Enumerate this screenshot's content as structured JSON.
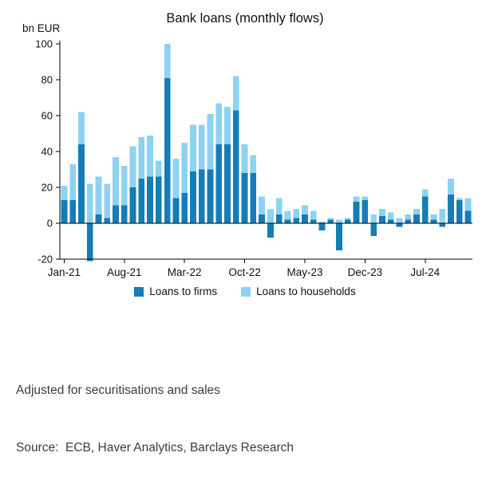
{
  "notes": {
    "adjusted": "Adjusted for securitisations and sales",
    "source": "Source:  ECB, Haver Analytics, Barclays Research"
  },
  "colors": {
    "firms": "#147db6",
    "households": "#8dd2f2",
    "axis": "#000000",
    "footnote_text": "#3c3c3c"
  },
  "chart_data": {
    "type": "bar",
    "stacked": true,
    "title": "Bank loans (monthly flows)",
    "ylabel": "bn EUR",
    "xlabel": "",
    "ylim": [
      -20,
      100
    ],
    "yticks": [
      100,
      80,
      60,
      40,
      20,
      0,
      -20
    ],
    "grid": false,
    "legend_position": "bottom",
    "x_tick_labels": [
      "Jan-21",
      "Aug-21",
      "Mar-22",
      "Oct-22",
      "May-23",
      "Dec-23",
      "Jul-24"
    ],
    "x_tick_indices": [
      0,
      7,
      14,
      21,
      28,
      35,
      42
    ],
    "categories": [
      "Jan-21",
      "Feb-21",
      "Mar-21",
      "Apr-21",
      "May-21",
      "Jun-21",
      "Jul-21",
      "Aug-21",
      "Sep-21",
      "Oct-21",
      "Nov-21",
      "Dec-21",
      "Jan-22",
      "Feb-22",
      "Mar-22",
      "Apr-22",
      "May-22",
      "Jun-22",
      "Jul-22",
      "Aug-22",
      "Sep-22",
      "Oct-22",
      "Nov-22",
      "Dec-22",
      "Jan-23",
      "Feb-23",
      "Mar-23",
      "Apr-23",
      "May-23",
      "Jun-23",
      "Jul-23",
      "Aug-23",
      "Sep-23",
      "Oct-23",
      "Nov-23",
      "Dec-23",
      "Jan-24",
      "Feb-24",
      "Mar-24",
      "Apr-24",
      "May-24",
      "Jun-24",
      "Jul-24",
      "Aug-24",
      "Sep-24",
      "Oct-24",
      "Nov-24",
      "Dec-24"
    ],
    "series": [
      {
        "name": "Loans to firms",
        "color": "#147db6",
        "values": [
          13,
          13,
          44,
          -21,
          5,
          3,
          10,
          10,
          20,
          25,
          26,
          26,
          81,
          14,
          17,
          29,
          30,
          30,
          44,
          44,
          63,
          28,
          28,
          5,
          -8,
          5,
          2,
          3,
          5,
          2,
          -4,
          2,
          -15,
          2,
          12,
          13,
          -7,
          4,
          2,
          -2,
          2,
          5,
          15,
          2,
          -2,
          16,
          13,
          7
        ]
      },
      {
        "name": "Loans to households",
        "color": "#8dd2f2",
        "values": [
          8,
          20,
          18,
          22,
          21,
          19,
          27,
          22,
          23,
          23,
          23,
          9,
          19,
          22,
          28,
          26,
          25,
          31,
          23,
          21,
          19,
          16,
          10,
          10,
          8,
          9,
          5,
          5,
          5,
          5,
          1,
          1,
          2,
          1,
          3,
          2,
          5,
          4,
          4,
          3,
          3,
          3,
          4,
          3,
          8,
          9,
          1,
          7
        ]
      }
    ]
  }
}
